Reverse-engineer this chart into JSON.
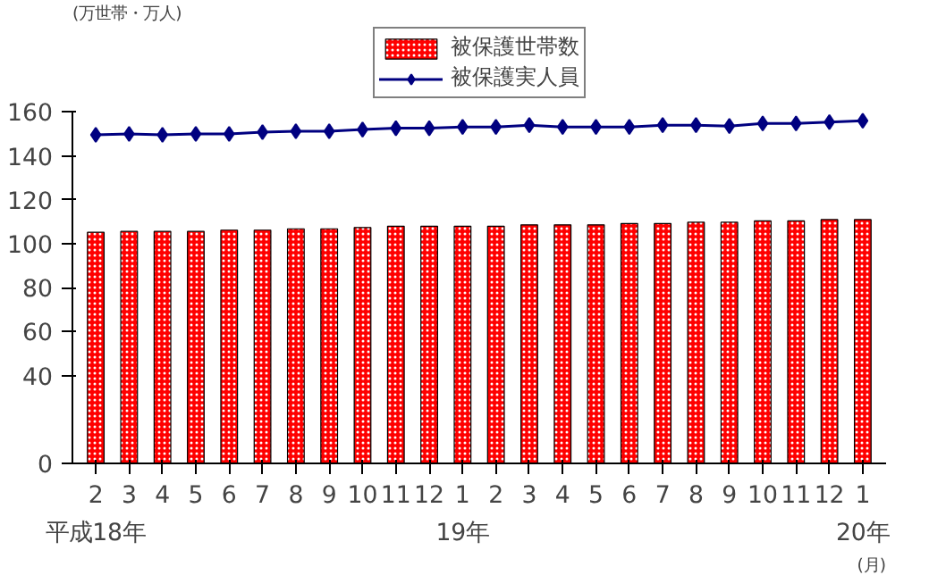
{
  "chart_data": {
    "type": "bar",
    "ylabel": "(万世帯・万人)",
    "xlabel": "(月)",
    "categories": [
      "2\n平成18年",
      "3",
      "4",
      "5",
      "6",
      "7",
      "8",
      "9",
      "10",
      "11",
      "12",
      "1\n19年",
      "2",
      "3",
      "4",
      "5",
      "6",
      "7",
      "8",
      "9",
      "10",
      "11",
      "12",
      "1\n20年"
    ],
    "series": [
      {
        "name": "被保護世帯数",
        "color": "#ff0000",
        "values": [
          105.2,
          105.6,
          105.6,
          105.6,
          106.2,
          106.2,
          106.8,
          106.8,
          107.4,
          108.0,
          108.0,
          108.0,
          108.0,
          108.6,
          108.6,
          108.6,
          109.2,
          109.2,
          109.8,
          109.8,
          110.4,
          110.4,
          111.0,
          111.0
        ]
      },
      {
        "name": "被保護実人員",
        "type": "line",
        "color": "#000080",
        "marker": "diamond",
        "values": [
          149.6,
          150.0,
          149.6,
          150.0,
          150.0,
          150.8,
          151.2,
          151.2,
          152.0,
          152.6,
          152.6,
          153.2,
          153.2,
          154.0,
          153.2,
          153.2,
          153.2,
          154.0,
          154.0,
          153.6,
          154.8,
          154.8,
          155.4,
          156.0
        ]
      }
    ],
    "ylim": [
      0,
      160
    ],
    "yticks": [
      0,
      40,
      60,
      80,
      100,
      120,
      140,
      160
    ],
    "grid": false,
    "legend": "top"
  }
}
